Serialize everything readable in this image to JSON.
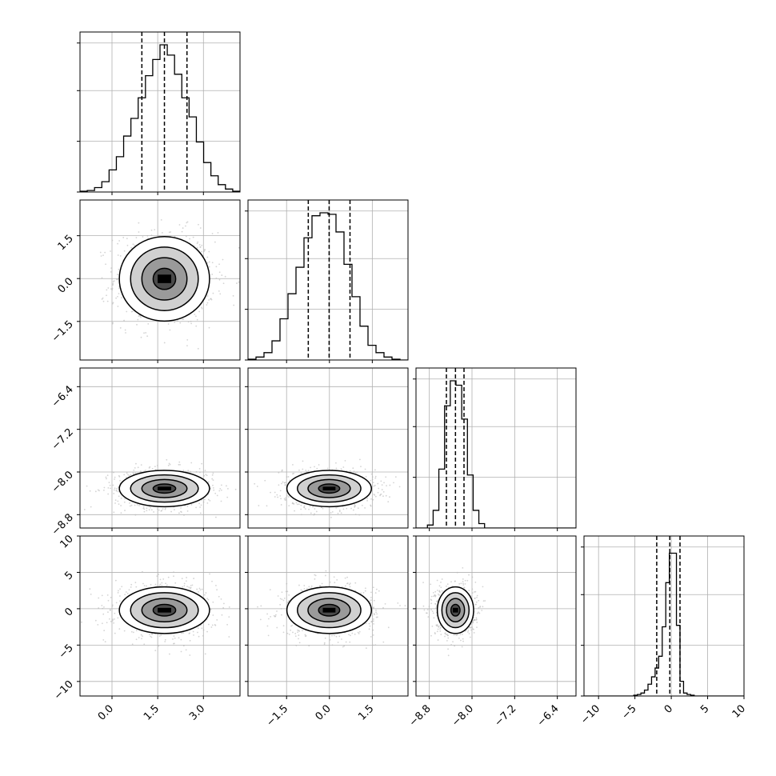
{
  "chart_data": {
    "type": "corner",
    "title": "",
    "ticks": {
      "p0": [
        "0.0",
        "1.5",
        "3.0"
      ],
      "p1": [
        "−1.5",
        "0.0",
        "1.5"
      ],
      "p2": [
        "−8.8",
        "−8.0",
        "−7.2",
        "−6.4"
      ],
      "p3": [
        "−10",
        "−5",
        "0",
        "5",
        "10"
      ]
    },
    "parameters": [
      {
        "range": [
          -1.05,
          4.2
        ],
        "ticks": [
          0.0,
          1.5,
          3.0
        ],
        "quantiles": [
          0.98,
          1.72,
          2.46
        ],
        "median": 1.72,
        "sigma": 0.74
      },
      {
        "range": [
          -2.85,
          2.75
        ],
        "ticks": [
          -1.5,
          0.0,
          1.5
        ],
        "quantiles": [
          -0.74,
          -0.01,
          0.72
        ],
        "median": -0.01,
        "sigma": 0.74
      },
      {
        "range": [
          -9.05,
          -6.05
        ],
        "ticks": [
          -8.8,
          -8.0,
          -7.2,
          -6.4
        ],
        "quantiles": [
          -8.48,
          -8.31,
          -8.15
        ],
        "median": -8.31,
        "sigma": 0.17
      },
      {
        "range": [
          -12.0,
          10.0
        ],
        "ticks": [
          -10,
          -5,
          0,
          5,
          10
        ],
        "quantiles": [
          -2.0,
          -0.2,
          1.2
        ],
        "median": -0.2,
        "sigma": 1.6
      }
    ],
    "histograms": [
      [
        0.005,
        0.01,
        0.03,
        0.07,
        0.15,
        0.24,
        0.38,
        0.5,
        0.64,
        0.79,
        0.9,
        1.0,
        0.93,
        0.8,
        0.64,
        0.51,
        0.34,
        0.2,
        0.11,
        0.05,
        0.02,
        0.005
      ],
      [
        0.005,
        0.02,
        0.05,
        0.13,
        0.28,
        0.45,
        0.63,
        0.83,
        0.98,
        1.0,
        0.99,
        0.87,
        0.65,
        0.43,
        0.23,
        0.1,
        0.05,
        0.02,
        0.005,
        0.0
      ],
      [
        0.0,
        0.0,
        0.02,
        0.12,
        0.4,
        0.83,
        1.0,
        0.97,
        0.74,
        0.36,
        0.12,
        0.03,
        0.0,
        0.0,
        0.0,
        0.0,
        0.0,
        0.0,
        0.0,
        0.0,
        0.0,
        0.0,
        0.0,
        0.0,
        0.0,
        0.0,
        0.0,
        0.0
      ],
      [
        0.0,
        0.0,
        0.0,
        0.0,
        0.0,
        0.0,
        0.0,
        0.0,
        0.0,
        0.0,
        0.0,
        0.0,
        0.0,
        0.0,
        0.005,
        0.01,
        0.02,
        0.04,
        0.08,
        0.13,
        0.19,
        0.27,
        0.47,
        0.77,
        0.97,
        0.97,
        0.48,
        0.1,
        0.02,
        0.01,
        0.005,
        0.0,
        0.0,
        0.0,
        0.0,
        0.0,
        0.0,
        0.0,
        0.0,
        0.0,
        0.0,
        0.0,
        0.0,
        0.0,
        0.0
      ]
    ],
    "contour_levels_sigma": [
      0.5,
      1.0,
      1.5,
      2.0
    ],
    "grid": true
  }
}
